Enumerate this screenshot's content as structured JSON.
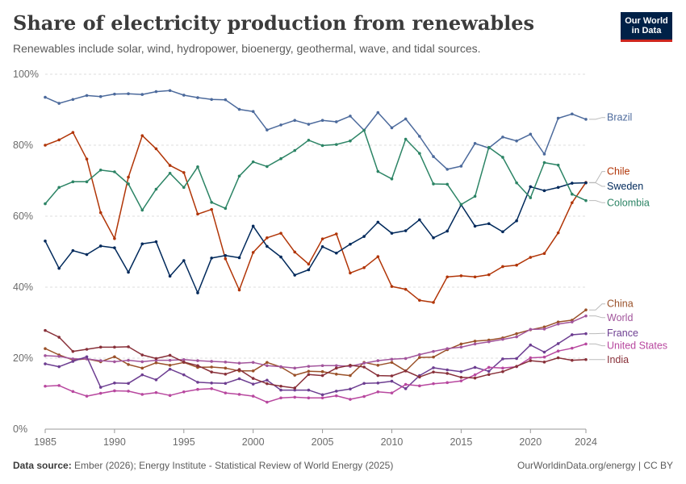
{
  "header": {
    "title": "Share of electricity production from renewables",
    "subtitle": "Renewables include solar, wind, hydropower, bioenergy, geothermal, wave, and tidal sources.",
    "logo_line1": "Our World",
    "logo_line2": "in Data"
  },
  "footer": {
    "source_label": "Data source:",
    "source_text": "Ember (2026); Energy Institute - Statistical Review of World Energy (2025)",
    "url_text": "OurWorldinData.org/energy | CC BY"
  },
  "chart_data": {
    "type": "line",
    "title": "Share of electricity production from renewables",
    "xlabel": "",
    "ylabel": "",
    "xlim": [
      1985,
      2024
    ],
    "ylim": [
      0,
      100
    ],
    "grid": "horizontal dashed",
    "legend": "right, inline labels at line ends",
    "y_ticks": [
      {
        "value": 0,
        "label": "0%"
      },
      {
        "value": 20,
        "label": "20%"
      },
      {
        "value": 40,
        "label": "40%"
      },
      {
        "value": 60,
        "label": "60%"
      },
      {
        "value": 80,
        "label": "80%"
      },
      {
        "value": 100,
        "label": "100%"
      }
    ],
    "x_ticks": [
      {
        "value": 1985,
        "label": "1985"
      },
      {
        "value": 1990,
        "label": "1990"
      },
      {
        "value": 1995,
        "label": "1995"
      },
      {
        "value": 2000,
        "label": "2000"
      },
      {
        "value": 2005,
        "label": "2005"
      },
      {
        "value": 2010,
        "label": "2010"
      },
      {
        "value": 2015,
        "label": "2015"
      },
      {
        "value": 2020,
        "label": "2020"
      },
      {
        "value": 2024,
        "label": "2024"
      }
    ],
    "x": [
      1985,
      1986,
      1987,
      1988,
      1989,
      1990,
      1991,
      1992,
      1993,
      1994,
      1995,
      1996,
      1997,
      1998,
      1999,
      2000,
      2001,
      2002,
      2003,
      2004,
      2005,
      2006,
      2007,
      2008,
      2009,
      2010,
      2011,
      2012,
      2013,
      2014,
      2015,
      2016,
      2017,
      2018,
      2019,
      2020,
      2021,
      2022,
      2023,
      2024
    ],
    "series": [
      {
        "name": "Brazil",
        "color": "#4c6a9c",
        "label_y": 87.8,
        "values": [
          93.5,
          91.8,
          92.9,
          94.0,
          93.7,
          94.4,
          94.5,
          94.3,
          95.1,
          95.4,
          94.1,
          93.4,
          92.9,
          92.8,
          90.1,
          89.5,
          84.3,
          85.7,
          87.0,
          85.9,
          87.0,
          86.6,
          88.2,
          84.2,
          89.2,
          84.9,
          87.4,
          82.5,
          76.8,
          73.2,
          74.1,
          80.5,
          79.2,
          82.3,
          81.2,
          83.1,
          77.5,
          87.6,
          88.8,
          87.3
        ]
      },
      {
        "name": "Chile",
        "color": "#b13507",
        "label_y": 72.6,
        "values": [
          80.0,
          81.5,
          83.6,
          76.1,
          61.0,
          53.7,
          71.0,
          82.7,
          79.0,
          74.3,
          72.3,
          60.6,
          61.9,
          48.0,
          39.2,
          49.8,
          53.9,
          55.2,
          49.9,
          46.5,
          53.6,
          55.0,
          44.0,
          45.5,
          48.6,
          40.2,
          39.4,
          36.3,
          35.7,
          42.9,
          43.2,
          42.9,
          43.5,
          45.8,
          46.2,
          48.4,
          49.5,
          55.3,
          63.8,
          69.5
        ]
      },
      {
        "name": "Sweden",
        "color": "#00295b",
        "label_y": 68.4,
        "values": [
          53.0,
          45.3,
          50.3,
          49.2,
          51.6,
          51.1,
          44.2,
          52.2,
          52.8,
          43.1,
          47.5,
          38.4,
          48.2,
          48.9,
          48.3,
          57.2,
          51.5,
          48.5,
          43.4,
          44.9,
          51.4,
          49.6,
          52.1,
          54.3,
          58.3,
          55.2,
          55.9,
          59.0,
          53.9,
          55.8,
          63.2,
          57.2,
          57.9,
          55.6,
          58.7,
          68.3,
          67.2,
          68.1,
          69.3,
          69.4
        ]
      },
      {
        "name": "Colombia",
        "color": "#2c8465",
        "label_y": 63.8,
        "values": [
          63.5,
          68.1,
          69.7,
          69.7,
          73.0,
          72.5,
          69.1,
          61.7,
          67.6,
          72.1,
          68.1,
          73.9,
          63.9,
          62.2,
          71.3,
          75.3,
          74.0,
          76.2,
          78.5,
          81.4,
          79.9,
          80.2,
          81.2,
          84.2,
          72.6,
          70.5,
          81.7,
          77.7,
          69.1,
          69.0,
          63.3,
          65.6,
          79.4,
          76.6,
          69.4,
          65.2,
          75.1,
          74.4,
          66.2,
          64.4
        ]
      },
      {
        "name": "China",
        "color": "#9a5129",
        "label_y": 35.3,
        "values": [
          22.7,
          20.9,
          19.5,
          19.8,
          19.0,
          20.4,
          18.2,
          17.2,
          18.7,
          18.0,
          18.8,
          17.4,
          17.5,
          17.2,
          16.4,
          16.4,
          18.8,
          17.5,
          15.2,
          16.3,
          16.2,
          15.5,
          15.1,
          18.8,
          18.0,
          18.8,
          16.4,
          20.2,
          20.3,
          22.4,
          24.0,
          24.8,
          25.1,
          25.7,
          26.9,
          28.0,
          28.8,
          30.2,
          30.7,
          33.6
        ]
      },
      {
        "name": "World",
        "color": "#a2559c",
        "label_y": 31.4,
        "values": [
          20.7,
          20.5,
          19.8,
          19.8,
          19.3,
          19.0,
          19.4,
          19.0,
          19.4,
          19.4,
          19.6,
          19.3,
          19.1,
          18.9,
          18.6,
          18.8,
          17.9,
          17.6,
          17.2,
          17.7,
          17.9,
          17.9,
          17.7,
          18.6,
          19.3,
          19.7,
          19.9,
          21.0,
          21.9,
          22.7,
          23.1,
          24.0,
          24.6,
          25.3,
          26.0,
          28.1,
          28.2,
          29.6,
          30.2,
          31.9
        ]
      },
      {
        "name": "France",
        "color": "#6d3e91",
        "label_y": 27.0,
        "values": [
          18.4,
          17.6,
          19.1,
          20.4,
          11.8,
          13.0,
          12.9,
          15.3,
          13.9,
          16.9,
          15.3,
          13.2,
          13.0,
          12.9,
          14.2,
          12.7,
          13.8,
          11.0,
          11.0,
          11.0,
          9.7,
          10.7,
          11.3,
          12.9,
          13.0,
          13.5,
          11.4,
          15.1,
          17.3,
          16.7,
          16.2,
          17.4,
          16.3,
          19.8,
          19.9,
          23.7,
          21.7,
          24.1,
          26.6,
          26.9
        ]
      },
      {
        "name": "United States",
        "color": "#b8489f",
        "label_y": 23.5,
        "values": [
          12.1,
          12.3,
          10.6,
          9.3,
          10.1,
          10.8,
          10.7,
          9.8,
          10.3,
          9.5,
          10.5,
          11.2,
          11.4,
          10.2,
          9.8,
          9.3,
          7.6,
          8.8,
          9.0,
          8.8,
          8.8,
          9.4,
          8.4,
          9.2,
          10.5,
          10.2,
          12.6,
          12.2,
          12.8,
          13.1,
          13.6,
          15.3,
          17.4,
          17.2,
          17.6,
          20.1,
          20.3,
          22.0,
          22.8,
          24.0
        ]
      },
      {
        "name": "India",
        "color": "#883039",
        "label_y": 19.6,
        "values": [
          27.8,
          25.9,
          21.9,
          22.5,
          23.1,
          23.1,
          23.2,
          20.9,
          19.9,
          20.8,
          18.9,
          17.9,
          16.1,
          15.5,
          16.8,
          14.3,
          12.8,
          12.1,
          11.6,
          15.4,
          15.1,
          17.2,
          18.0,
          17.5,
          15.1,
          15.0,
          16.4,
          14.7,
          16.1,
          15.7,
          14.6,
          14.4,
          15.4,
          16.2,
          17.7,
          19.3,
          18.9,
          20.1,
          19.4,
          19.6
        ]
      }
    ]
  }
}
